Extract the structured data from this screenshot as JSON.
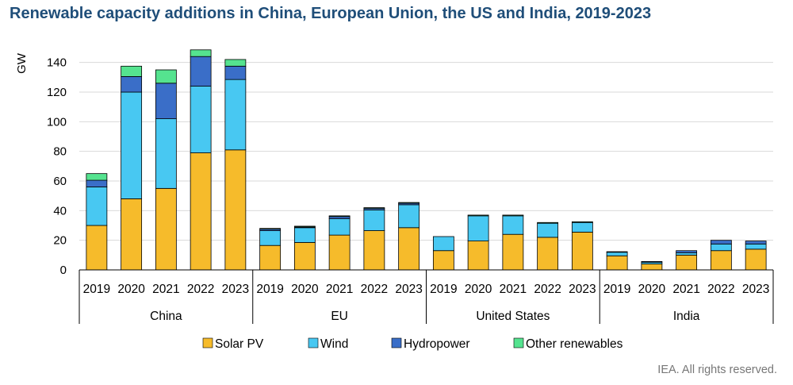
{
  "chart_data": {
    "type": "bar",
    "stacked": true,
    "title": "Renewable capacity additions in China, European Union, the US and India, 2019-2023",
    "ylabel": "GW",
    "xlabel": "",
    "ylim": [
      0,
      150
    ],
    "yticks": [
      0,
      20,
      40,
      60,
      80,
      100,
      120,
      140
    ],
    "grid": true,
    "legend_position": "bottom",
    "groups": [
      {
        "name": "China",
        "categories": [
          "2019",
          "2020",
          "2021",
          "2022",
          "2023"
        ],
        "series": [
          {
            "name": "Solar PV",
            "values": [
              30,
              48,
              55,
              79,
              81
            ]
          },
          {
            "name": "Wind",
            "values": [
              26,
              72,
              47,
              45,
              47.5
            ]
          },
          {
            "name": "Hydropower",
            "values": [
              4.5,
              10.5,
              24,
              20,
              9
            ]
          },
          {
            "name": "Other renewables",
            "values": [
              4.5,
              7,
              9,
              4.5,
              4.5
            ]
          }
        ]
      },
      {
        "name": "EU",
        "categories": [
          "2019",
          "2020",
          "2021",
          "2022",
          "2023"
        ],
        "series": [
          {
            "name": "Solar PV",
            "values": [
              16.5,
              18.5,
              23.5,
              26.5,
              28.5
            ]
          },
          {
            "name": "Wind",
            "values": [
              10,
              10,
              11,
              14,
              15.5
            ]
          },
          {
            "name": "Hydropower",
            "values": [
              1,
              0.5,
              1.5,
              1,
              1
            ]
          },
          {
            "name": "Other renewables",
            "values": [
              0.5,
              0.5,
              0.5,
              0.5,
              0.5
            ]
          }
        ]
      },
      {
        "name": "United States",
        "categories": [
          "2019",
          "2020",
          "2021",
          "2022",
          "2023"
        ],
        "series": [
          {
            "name": "Solar PV",
            "values": [
              13,
              19.5,
              24,
              22,
              25.5
            ]
          },
          {
            "name": "Wind",
            "values": [
              9.5,
              17,
              12.5,
              9.5,
              6.5
            ]
          },
          {
            "name": "Hydropower",
            "values": [
              0,
              0,
              0,
              0,
              0
            ]
          },
          {
            "name": "Other renewables",
            "values": [
              0,
              0.5,
              0.5,
              0.5,
              0.5
            ]
          }
        ]
      },
      {
        "name": "India",
        "categories": [
          "2019",
          "2020",
          "2021",
          "2022",
          "2023"
        ],
        "series": [
          {
            "name": "Solar PV",
            "values": [
              9.5,
              4,
              10,
              13,
              14
            ]
          },
          {
            "name": "Wind",
            "values": [
              2.5,
              1.2,
              1.5,
              4.5,
              3.5
            ]
          },
          {
            "name": "Hydropower",
            "values": [
              0.3,
              0.5,
              1.5,
              2.5,
              2
            ]
          },
          {
            "name": "Other renewables",
            "values": [
              0,
              0,
              0,
              0,
              0
            ]
          }
        ]
      }
    ],
    "colors": {
      "Solar PV": "#f6bb2b",
      "Wind": "#48c8f2",
      "Hydropower": "#3a6ec8",
      "Other renewables": "#55e38f"
    }
  },
  "credit": "IEA. All rights reserved."
}
